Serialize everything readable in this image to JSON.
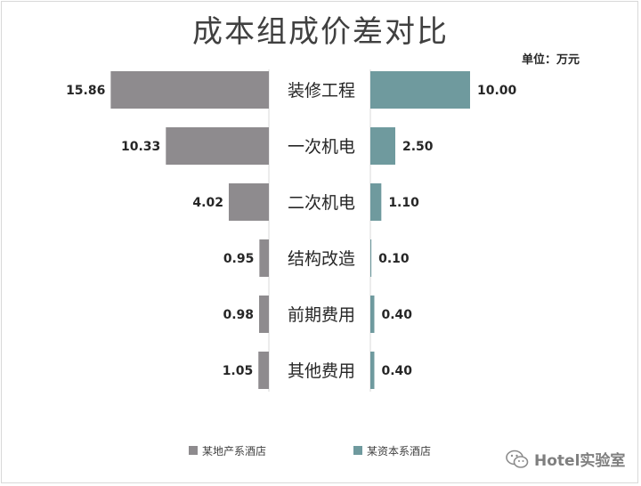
{
  "chart_data": {
    "type": "bar",
    "title": "成本组成价差对比",
    "unit": "单位：万元",
    "categories": [
      "装修工程",
      "一次机电",
      "二次机电",
      "结构改造",
      "前期费用",
      "其他费用"
    ],
    "series": [
      {
        "name": "某地产系酒店",
        "values": [
          15.86,
          10.33,
          4.02,
          0.95,
          0.98,
          1.05
        ],
        "labels": [
          "15.86",
          "10.33",
          "4.02",
          "0.95",
          "0.98",
          "1.05"
        ]
      },
      {
        "name": "某资本系酒店",
        "values": [
          10.0,
          2.5,
          1.1,
          0.1,
          0.4,
          0.4
        ],
        "labels": [
          "10.00",
          "2.50",
          "1.10",
          "0.10",
          "0.40",
          "0.40"
        ]
      }
    ],
    "legend_position": "bottom",
    "grid": false
  },
  "colors": {
    "left": "#8e8b8e",
    "right": "#6f9a9e",
    "category_text": "#262626",
    "value_text": "#262626"
  },
  "watermark": {
    "icon": "wechat-icon",
    "text": "Hotel实验室"
  }
}
